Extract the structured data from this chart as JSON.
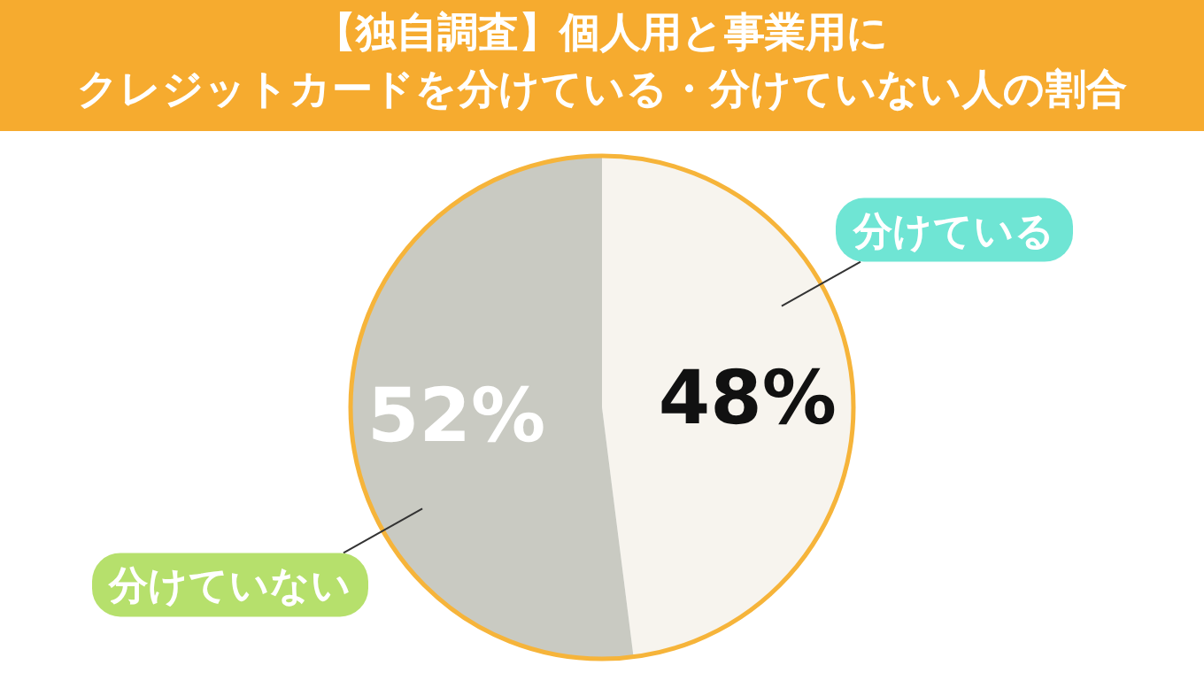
{
  "chart_data": {
    "type": "pie",
    "title": "【独自調査】個人用と事業用に",
    "subtitle": "クレジットカードを分けている・分けていない人の割合",
    "categories": [
      "分けている",
      "分けていない"
    ],
    "values": [
      48,
      52
    ],
    "colors": [
      "#f7f4ee",
      "#c9cac2"
    ],
    "value_labels": [
      "48%",
      "52%"
    ]
  }
}
